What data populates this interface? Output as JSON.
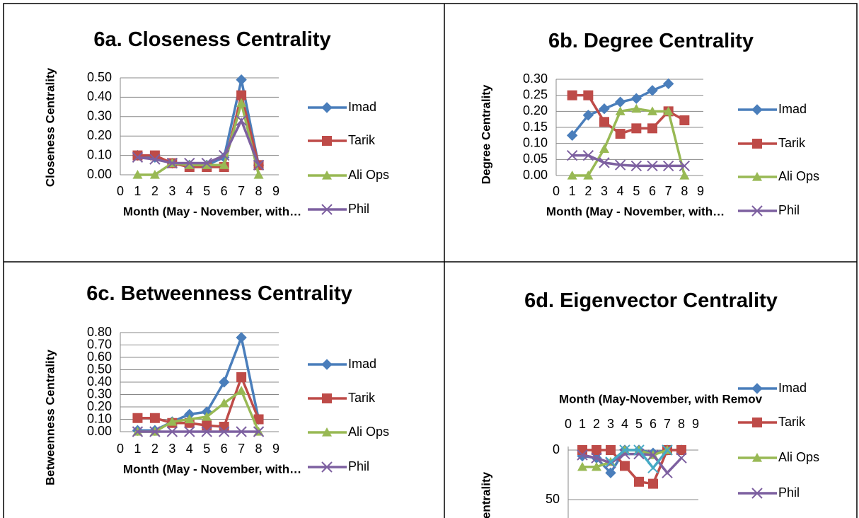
{
  "chart_data": [
    {
      "type": "line",
      "title": "6a. Closeness Centrality",
      "x_label": "Month (May - November, with…",
      "y_label": "Closeness Centrality",
      "x": [
        1,
        2,
        3,
        4,
        5,
        6,
        7,
        8
      ],
      "xlim": [
        0,
        9
      ],
      "xticks": [
        0,
        1,
        2,
        3,
        4,
        5,
        6,
        7,
        8,
        9
      ],
      "ylim": [
        0,
        0.5
      ],
      "yticks": [
        {
          "value": 0,
          "label": "0.00"
        },
        {
          "value": 0.1,
          "label": "0.10"
        },
        {
          "value": 0.2,
          "label": "0.20"
        },
        {
          "value": 0.3,
          "label": "0.30"
        },
        {
          "value": 0.4,
          "label": "0.40"
        },
        {
          "value": 0.5,
          "label": "0.50"
        }
      ],
      "grid": true,
      "series": [
        {
          "name": "Imad",
          "color": "#4a7ebb",
          "values": [
            0.1,
            0.09,
            0.06,
            0.05,
            0.05,
            0.09,
            0.49,
            0.05
          ]
        },
        {
          "name": "Tarik",
          "color": "#be4b48",
          "values": [
            0.1,
            0.1,
            0.06,
            0.04,
            0.04,
            0.04,
            0.41,
            0.05
          ]
        },
        {
          "name": "Ali Ops",
          "color": "#98b954",
          "values": [
            0,
            0,
            0.06,
            0.05,
            0.05,
            0.05,
            0.37,
            0
          ]
        },
        {
          "name": "Phil",
          "color": "#7d60a0",
          "values": [
            0.09,
            0.08,
            0.06,
            0.06,
            0.06,
            0.1,
            0.28,
            0.05
          ]
        }
      ]
    },
    {
      "type": "line",
      "title": "6b. Degree Centrality",
      "x_label": "Month (May - November, with…",
      "y_label": "Degree Centrality",
      "x": [
        1,
        2,
        3,
        4,
        5,
        6,
        7,
        8
      ],
      "xlim": [
        0,
        9
      ],
      "xticks": [
        0,
        1,
        2,
        3,
        4,
        5,
        6,
        7,
        8,
        9
      ],
      "ylim": [
        0,
        0.3
      ],
      "yticks": [
        {
          "value": 0,
          "label": "0.00"
        },
        {
          "value": 0.05,
          "label": "0.05"
        },
        {
          "value": 0.1,
          "label": "0.10"
        },
        {
          "value": 0.15,
          "label": "0.15"
        },
        {
          "value": 0.2,
          "label": "0.20"
        },
        {
          "value": 0.25,
          "label": "0.25"
        },
        {
          "value": 0.3,
          "label": "0.30"
        }
      ],
      "grid": true,
      "series": [
        {
          "name": "Imad",
          "color": "#4a7ebb",
          "values": [
            0.125,
            0.188,
            0.208,
            0.229,
            0.24,
            0.265,
            0.286,
            null
          ]
        },
        {
          "name": "Tarik",
          "color": "#be4b48",
          "values": [
            0.25,
            0.25,
            0.167,
            0.13,
            0.147,
            0.147,
            0.2,
            0.172
          ]
        },
        {
          "name": "Ali Ops",
          "color": "#98b954",
          "values": [
            0,
            0,
            0.083,
            0.2,
            0.208,
            0.2,
            0.2,
            0
          ]
        },
        {
          "name": "Phil",
          "color": "#7d60a0",
          "values": [
            0.0625,
            0.0625,
            0.04,
            0.033,
            0.03,
            0.03,
            0.03,
            0.03
          ]
        }
      ]
    },
    {
      "type": "line",
      "title": "6c. Betweenness Centrality",
      "x_label": "Month (May - November, with…",
      "y_label": "Betweenness Centrality",
      "x": [
        1,
        2,
        3,
        4,
        5,
        6,
        7,
        8
      ],
      "xlim": [
        0,
        9
      ],
      "xticks": [
        0,
        1,
        2,
        3,
        4,
        5,
        6,
        7,
        8,
        9
      ],
      "ylim": [
        0,
        0.8
      ],
      "yticks": [
        {
          "value": 0,
          "label": "0.00"
        },
        {
          "value": 0.1,
          "label": "0.10"
        },
        {
          "value": 0.2,
          "label": "0.20"
        },
        {
          "value": 0.3,
          "label": "0.30"
        },
        {
          "value": 0.4,
          "label": "0.40"
        },
        {
          "value": 0.5,
          "label": "0.50"
        },
        {
          "value": 0.6,
          "label": "0.60"
        },
        {
          "value": 0.7,
          "label": "0.70"
        },
        {
          "value": 0.8,
          "label": "0.80"
        }
      ],
      "grid": true,
      "series": [
        {
          "name": "Imad",
          "color": "#4a7ebb",
          "values": [
            0.01,
            0.01,
            0.08,
            0.14,
            0.16,
            0.4,
            0.76,
            0.1
          ]
        },
        {
          "name": "Tarik",
          "color": "#be4b48",
          "values": [
            0.11,
            0.11,
            0.07,
            0.07,
            0.05,
            0.04,
            0.44,
            0.1
          ]
        },
        {
          "name": "Ali Ops",
          "color": "#98b954",
          "values": [
            0,
            0,
            0.08,
            0.1,
            0.12,
            0.23,
            0.33,
            0
          ]
        },
        {
          "name": "Phil",
          "color": "#7d60a0",
          "values": [
            0,
            0,
            0,
            0,
            0,
            0,
            0,
            0
          ]
        }
      ]
    },
    {
      "type": "line",
      "title": "6d. Eigenvector Centrality",
      "x_label": "Month (May-November, with Remov",
      "y_label": "entrality",
      "x": [
        1,
        2,
        3,
        4,
        5,
        6,
        7,
        8
      ],
      "xlim": [
        0,
        9
      ],
      "xticks": [
        0,
        1,
        2,
        3,
        4,
        5,
        6,
        7,
        8,
        9
      ],
      "ylim": [
        0,
        50
      ],
      "yticks": [
        0,
        50
      ],
      "y_reversed": true,
      "x_axis_top": true,
      "grid": true,
      "series": [
        {
          "name": "Imad",
          "color": "#4a7ebb",
          "values": [
            6,
            8,
            23,
            0,
            0,
            3,
            0,
            0
          ]
        },
        {
          "name": "Tarik",
          "color": "#be4b48",
          "values": [
            0,
            0,
            0,
            16,
            32,
            34,
            0,
            0
          ]
        },
        {
          "name": "Ali Ops",
          "color": "#98b954",
          "values": [
            17,
            17,
            12,
            0,
            0,
            5,
            0,
            null
          ]
        },
        {
          "name": "Phil",
          "color": "#7d60a0",
          "values": [
            5,
            8,
            13,
            4,
            4,
            5,
            23,
            8
          ]
        },
        {
          "name": null,
          "color": "#46aac5",
          "values": [
            null,
            null,
            12,
            0,
            0,
            18,
            0,
            null
          ]
        }
      ]
    }
  ]
}
